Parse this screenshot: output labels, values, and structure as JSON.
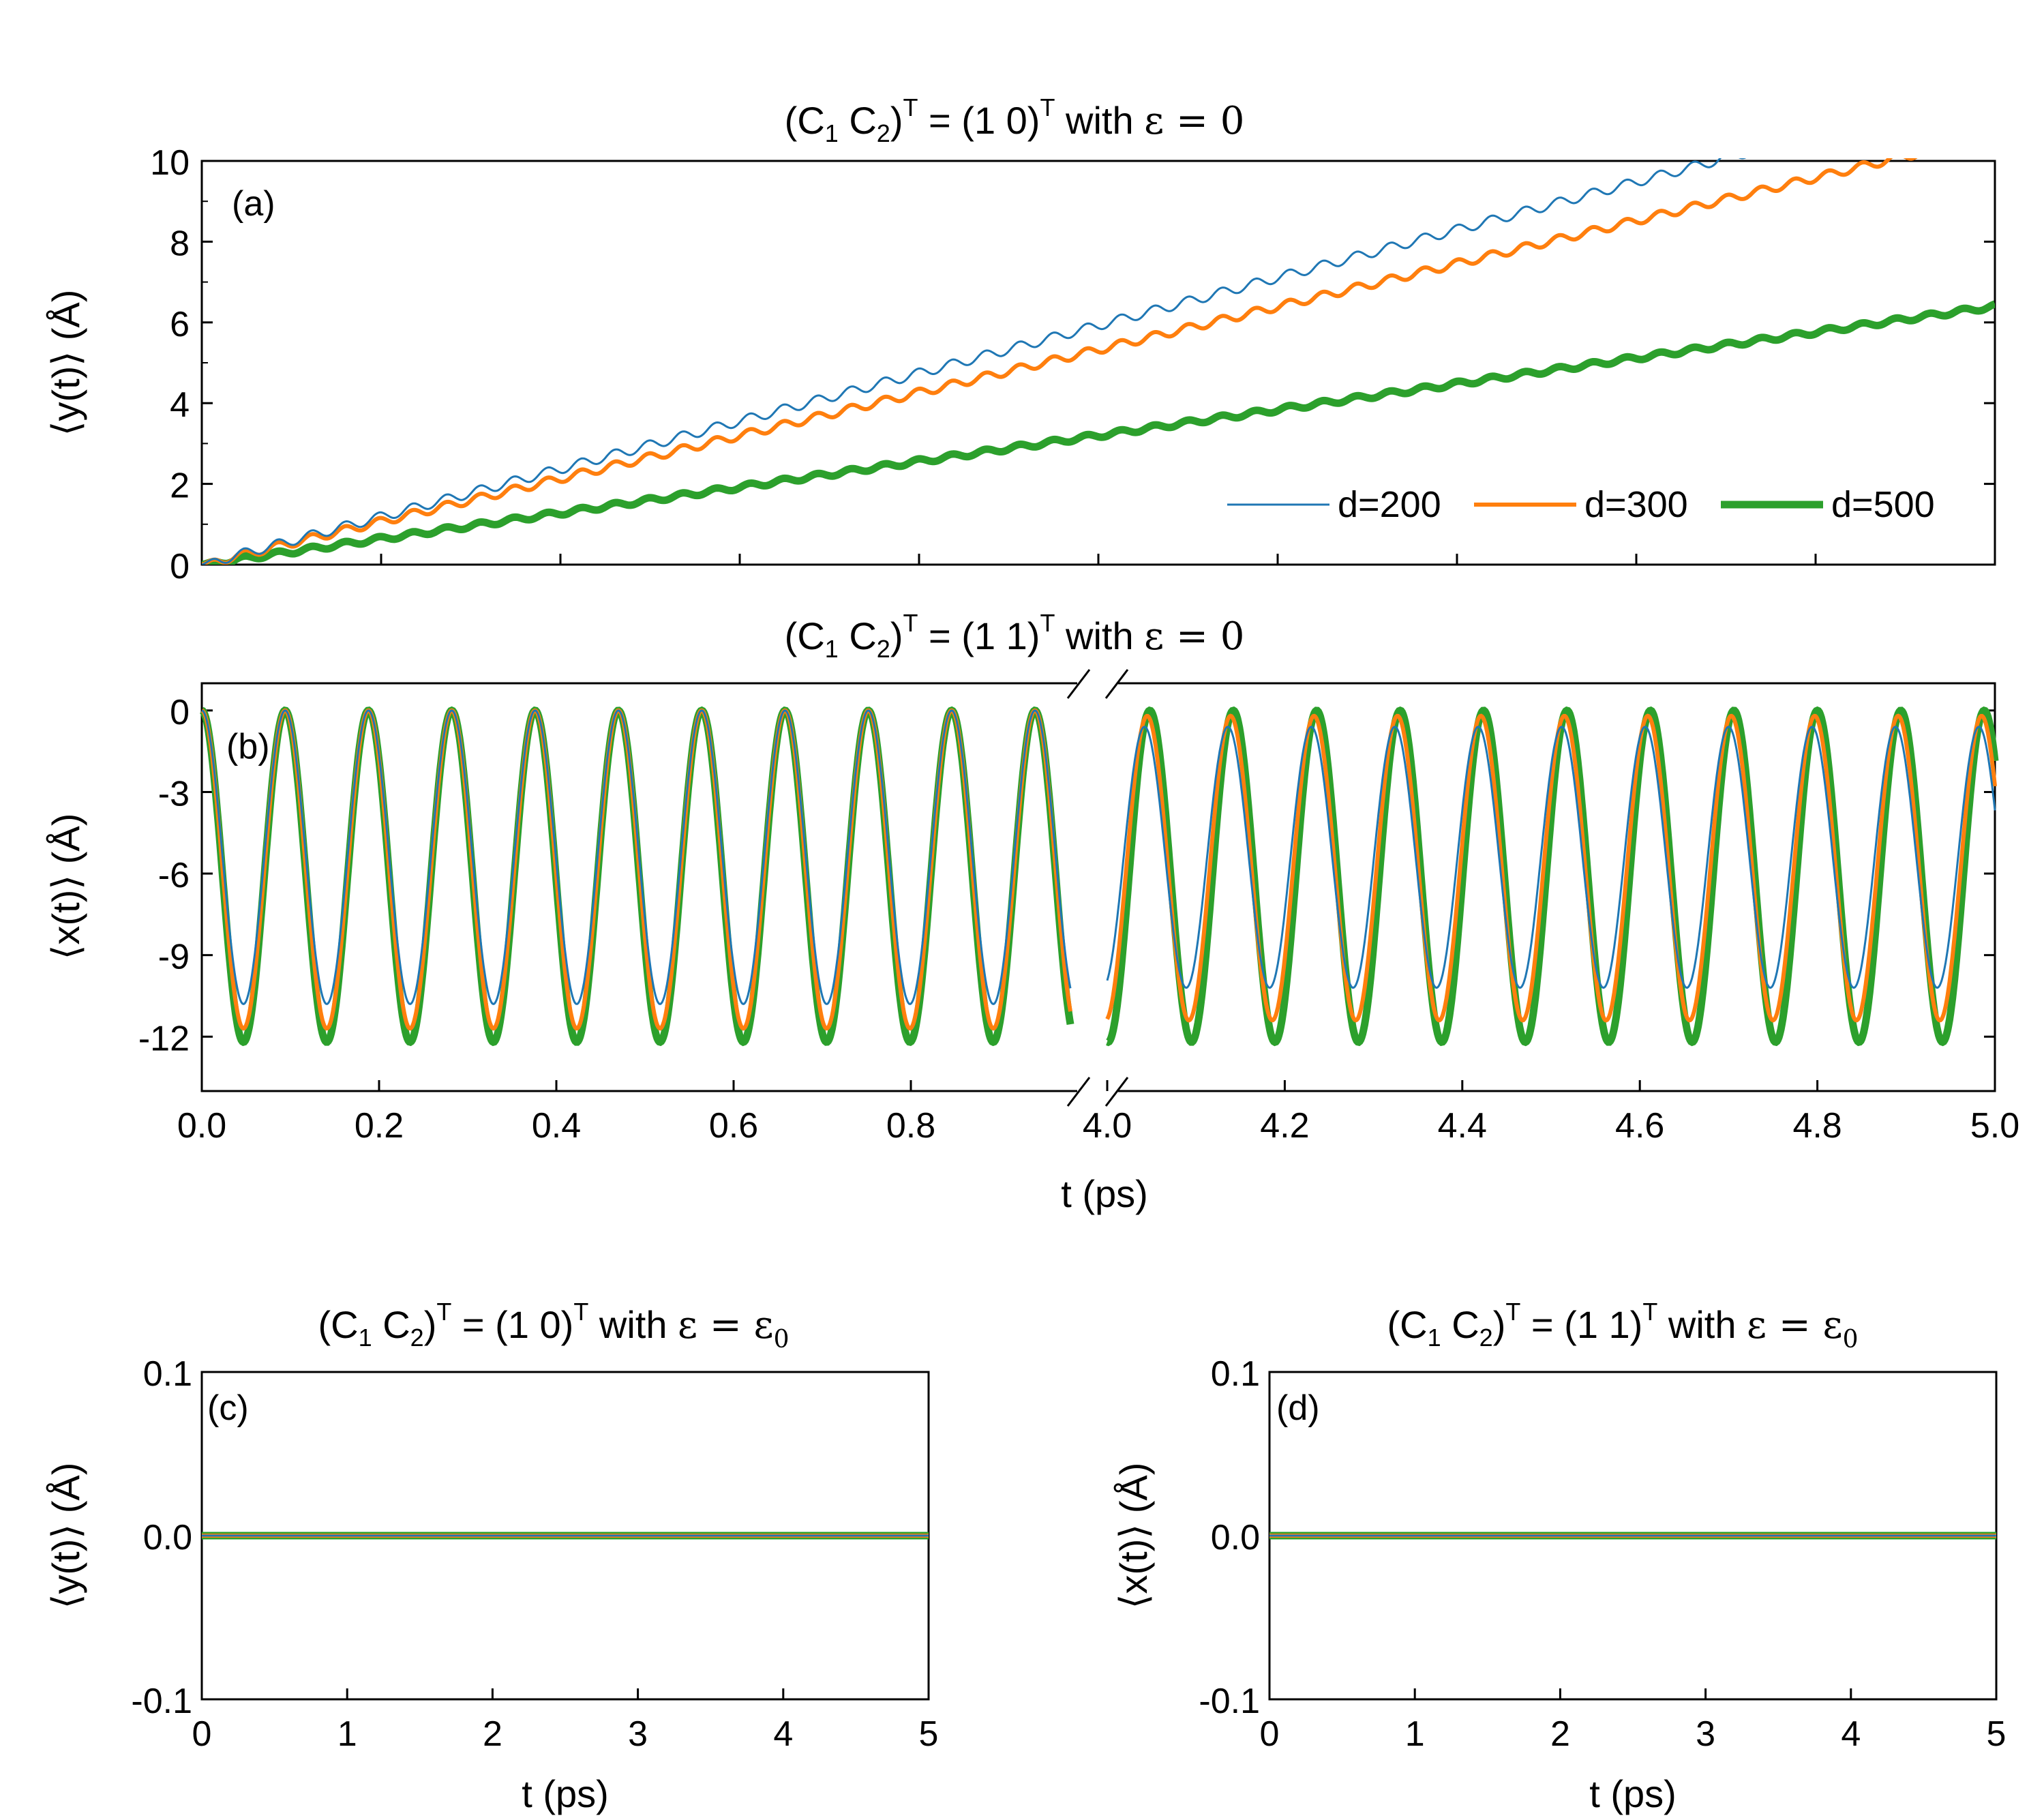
{
  "figure": {
    "panels": {
      "a": {
        "title_pre": "(C",
        "title_sub1": "1",
        "title_mid": " C",
        "title_sub2": "2",
        "title_sup1": "T",
        "title_eq": " = (1 0)",
        "title_sup2": "T",
        "title_with": "  with  ",
        "title_eps": "ε = 0",
        "label": "(a)",
        "ylabel": "⟨y(t)⟩ (Å)"
      },
      "b": {
        "title_pre": "(C",
        "title_sub1": "1",
        "title_mid": " C",
        "title_sub2": "2",
        "title_sup1": "T",
        "title_eq": " = (1 1)",
        "title_sup2": "T",
        "title_with": "  with  ",
        "title_eps": "ε = 0",
        "label": "(b)",
        "ylabel": "⟨x(t)⟩ (Å)",
        "xlabel": "t (ps)"
      },
      "c": {
        "title_pre": "(C",
        "title_sub1": "1",
        "title_mid": " C",
        "title_sub2": "2",
        "title_sup1": "T",
        "title_eq": " = (1 0)",
        "title_sup2": "T",
        "title_with": "  with  ",
        "title_eps": "ε = ε",
        "title_eps_sub": "0",
        "label": "(c)",
        "ylabel": "⟨y(t)⟩ (Å)",
        "xlabel": "t (ps)"
      },
      "d": {
        "title_pre": "(C",
        "title_sub1": "1",
        "title_mid": " C",
        "title_sub2": "2",
        "title_sup1": "T",
        "title_eq": " = (1 1)",
        "title_sup2": "T",
        "title_with": "  with  ",
        "title_eps": "ε = ε",
        "title_eps_sub": "0",
        "label": "(d)",
        "ylabel": "⟨x(t)⟩ (Å)",
        "xlabel": "t (ps)"
      }
    },
    "legend": [
      {
        "name": "d=200",
        "color": "#1f77b4"
      },
      {
        "name": "d=300",
        "color": "#ff7f0e"
      },
      {
        "name": "d=500",
        "color": "#2ca02c"
      }
    ]
  },
  "chart_data": [
    {
      "id": "a",
      "type": "line",
      "xlim": [
        0,
        5
      ],
      "ylim": [
        0,
        10
      ],
      "yticks": [
        "0",
        "2",
        "4",
        "6",
        "8",
        "10"
      ],
      "legend_position": "bottom-right",
      "series": [
        {
          "name": "d=200",
          "color": "#1f77b4",
          "slope_per_ps": 2.37,
          "ripple_amplitude": 0.12,
          "ripple_period_ps": 0.094
        },
        {
          "name": "d=300",
          "color": "#ff7f0e",
          "slope_per_ps": 2.13,
          "ripple_amplitude": 0.1,
          "ripple_period_ps": 0.094
        },
        {
          "name": "d=500",
          "color": "#2ca02c",
          "slope_per_ps": 1.28,
          "ripple_amplitude": 0.06,
          "ripple_period_ps": 0.094
        }
      ]
    },
    {
      "id": "b",
      "type": "line",
      "broken_x_axis": true,
      "segments": [
        [
          0.0,
          1.0
        ],
        [
          4.0,
          5.0
        ]
      ],
      "xticks": [
        "0.0",
        "0.2",
        "0.4",
        "0.6",
        "0.8",
        "4.0",
        "4.2",
        "4.4",
        "4.6",
        "4.8",
        "5.0"
      ],
      "ylim": [
        -14,
        1
      ],
      "yticks": [
        "0",
        "-3",
        "-6",
        "-9",
        "-12"
      ],
      "period_ps": 0.094,
      "series": [
        {
          "name": "d=200",
          "color": "#1f77b4",
          "min_early": -10.8,
          "max_late": -0.6,
          "min_late": -10.2
        },
        {
          "name": "d=300",
          "color": "#ff7f0e",
          "min_early": -11.7,
          "max_late": -0.2,
          "min_late": -11.4
        },
        {
          "name": "d=500",
          "color": "#2ca02c",
          "min_early": -12.2,
          "max_late": 0.0,
          "min_late": -12.2
        }
      ]
    },
    {
      "id": "c",
      "type": "line",
      "xlim": [
        0,
        5
      ],
      "ylim": [
        -0.1,
        0.1
      ],
      "xticks": [
        "0",
        "1",
        "2",
        "3",
        "4",
        "5"
      ],
      "yticks": [
        "0.1",
        "0.0",
        "-0.1"
      ],
      "series": [
        {
          "name": "d=200",
          "color": "#1f77b4",
          "value": 0.0
        },
        {
          "name": "d=300",
          "color": "#ff7f0e",
          "value": 0.0
        },
        {
          "name": "d=500",
          "color": "#2ca02c",
          "value": 0.0
        }
      ]
    },
    {
      "id": "d",
      "type": "line",
      "xlim": [
        0,
        5
      ],
      "ylim": [
        -0.1,
        0.1
      ],
      "xticks": [
        "0",
        "1",
        "2",
        "3",
        "4",
        "5"
      ],
      "yticks": [
        "0.1",
        "0.0",
        "-0.1"
      ],
      "series": [
        {
          "name": "d=200",
          "color": "#1f77b4",
          "value": 0.0
        },
        {
          "name": "d=300",
          "color": "#ff7f0e",
          "value": 0.0
        },
        {
          "name": "d=500",
          "color": "#2ca02c",
          "value": 0.0
        }
      ]
    }
  ]
}
